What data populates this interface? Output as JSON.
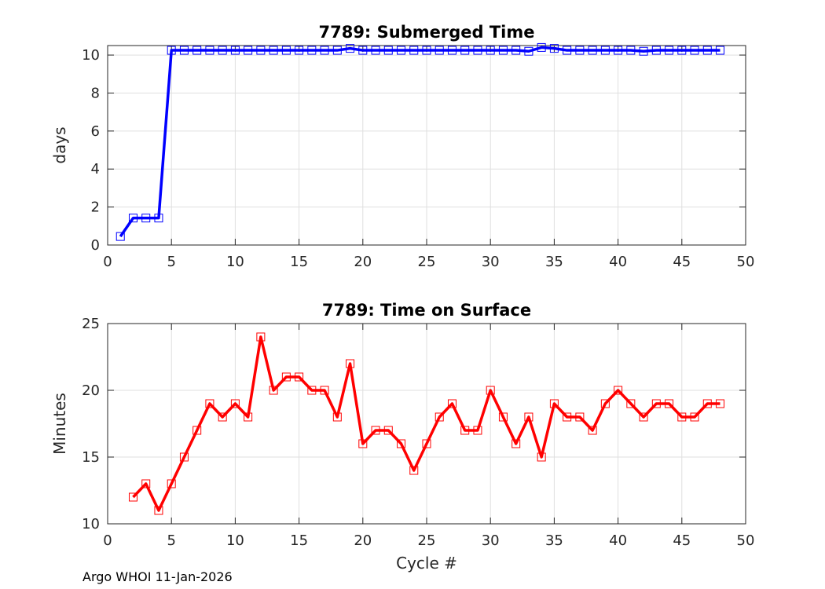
{
  "footer": "Argo WHOI 11-Jan-2026",
  "chart_data": [
    {
      "type": "line",
      "title": "7789: Submerged Time",
      "xlabel": "",
      "ylabel": "days",
      "xlim": [
        0,
        50
      ],
      "ylim": [
        0,
        10.5
      ],
      "xticks": [
        0,
        5,
        10,
        15,
        20,
        25,
        30,
        35,
        40,
        45,
        50
      ],
      "yticks": [
        0,
        2,
        4,
        6,
        8,
        10
      ],
      "grid": true,
      "color": "#0000ff",
      "marker": "square",
      "series": [
        {
          "x": [
            1,
            2,
            3,
            4,
            5,
            6,
            7,
            8,
            9,
            10,
            11,
            12,
            13,
            14,
            15,
            16,
            17,
            18,
            19,
            20,
            21,
            22,
            23,
            24,
            25,
            26,
            27,
            28,
            29,
            30,
            31,
            32,
            33,
            34,
            35,
            36,
            37,
            38,
            39,
            40,
            41,
            42,
            43,
            44,
            45,
            46,
            47,
            48
          ],
          "values": [
            0.45,
            1.42,
            1.42,
            1.42,
            10.25,
            10.25,
            10.25,
            10.25,
            10.25,
            10.25,
            10.25,
            10.25,
            10.25,
            10.25,
            10.25,
            10.25,
            10.25,
            10.25,
            10.35,
            10.25,
            10.25,
            10.25,
            10.25,
            10.25,
            10.25,
            10.25,
            10.25,
            10.25,
            10.25,
            10.25,
            10.25,
            10.25,
            10.2,
            10.4,
            10.35,
            10.25,
            10.25,
            10.25,
            10.25,
            10.25,
            10.25,
            10.2,
            10.25,
            10.25,
            10.25,
            10.25,
            10.25,
            10.25
          ]
        }
      ]
    },
    {
      "type": "line",
      "title": "7789: Time on Surface",
      "xlabel": "Cycle #",
      "ylabel": "Minutes",
      "xlim": [
        0,
        50
      ],
      "ylim": [
        10,
        25
      ],
      "xticks": [
        0,
        5,
        10,
        15,
        20,
        25,
        30,
        35,
        40,
        45,
        50
      ],
      "yticks": [
        10,
        15,
        20,
        25
      ],
      "grid": true,
      "color": "#ff0000",
      "marker": "square",
      "series": [
        {
          "x": [
            2,
            3,
            4,
            5,
            6,
            7,
            8,
            9,
            10,
            11,
            12,
            13,
            14,
            15,
            16,
            17,
            18,
            19,
            20,
            21,
            22,
            23,
            24,
            25,
            26,
            27,
            28,
            29,
            30,
            31,
            32,
            33,
            34,
            35,
            36,
            37,
            38,
            39,
            40,
            41,
            42,
            43,
            44,
            45,
            46,
            47,
            48
          ],
          "values": [
            12,
            13,
            11,
            13,
            15,
            17,
            19,
            18,
            19,
            18,
            24,
            20,
            21,
            21,
            20,
            20,
            18,
            22,
            16,
            17,
            17,
            16,
            14,
            16,
            18,
            19,
            17,
            17,
            20,
            18,
            16,
            18,
            15,
            19,
            18,
            18,
            17,
            19,
            20,
            19,
            18,
            19,
            19,
            18,
            18,
            19,
            19
          ]
        }
      ]
    }
  ]
}
